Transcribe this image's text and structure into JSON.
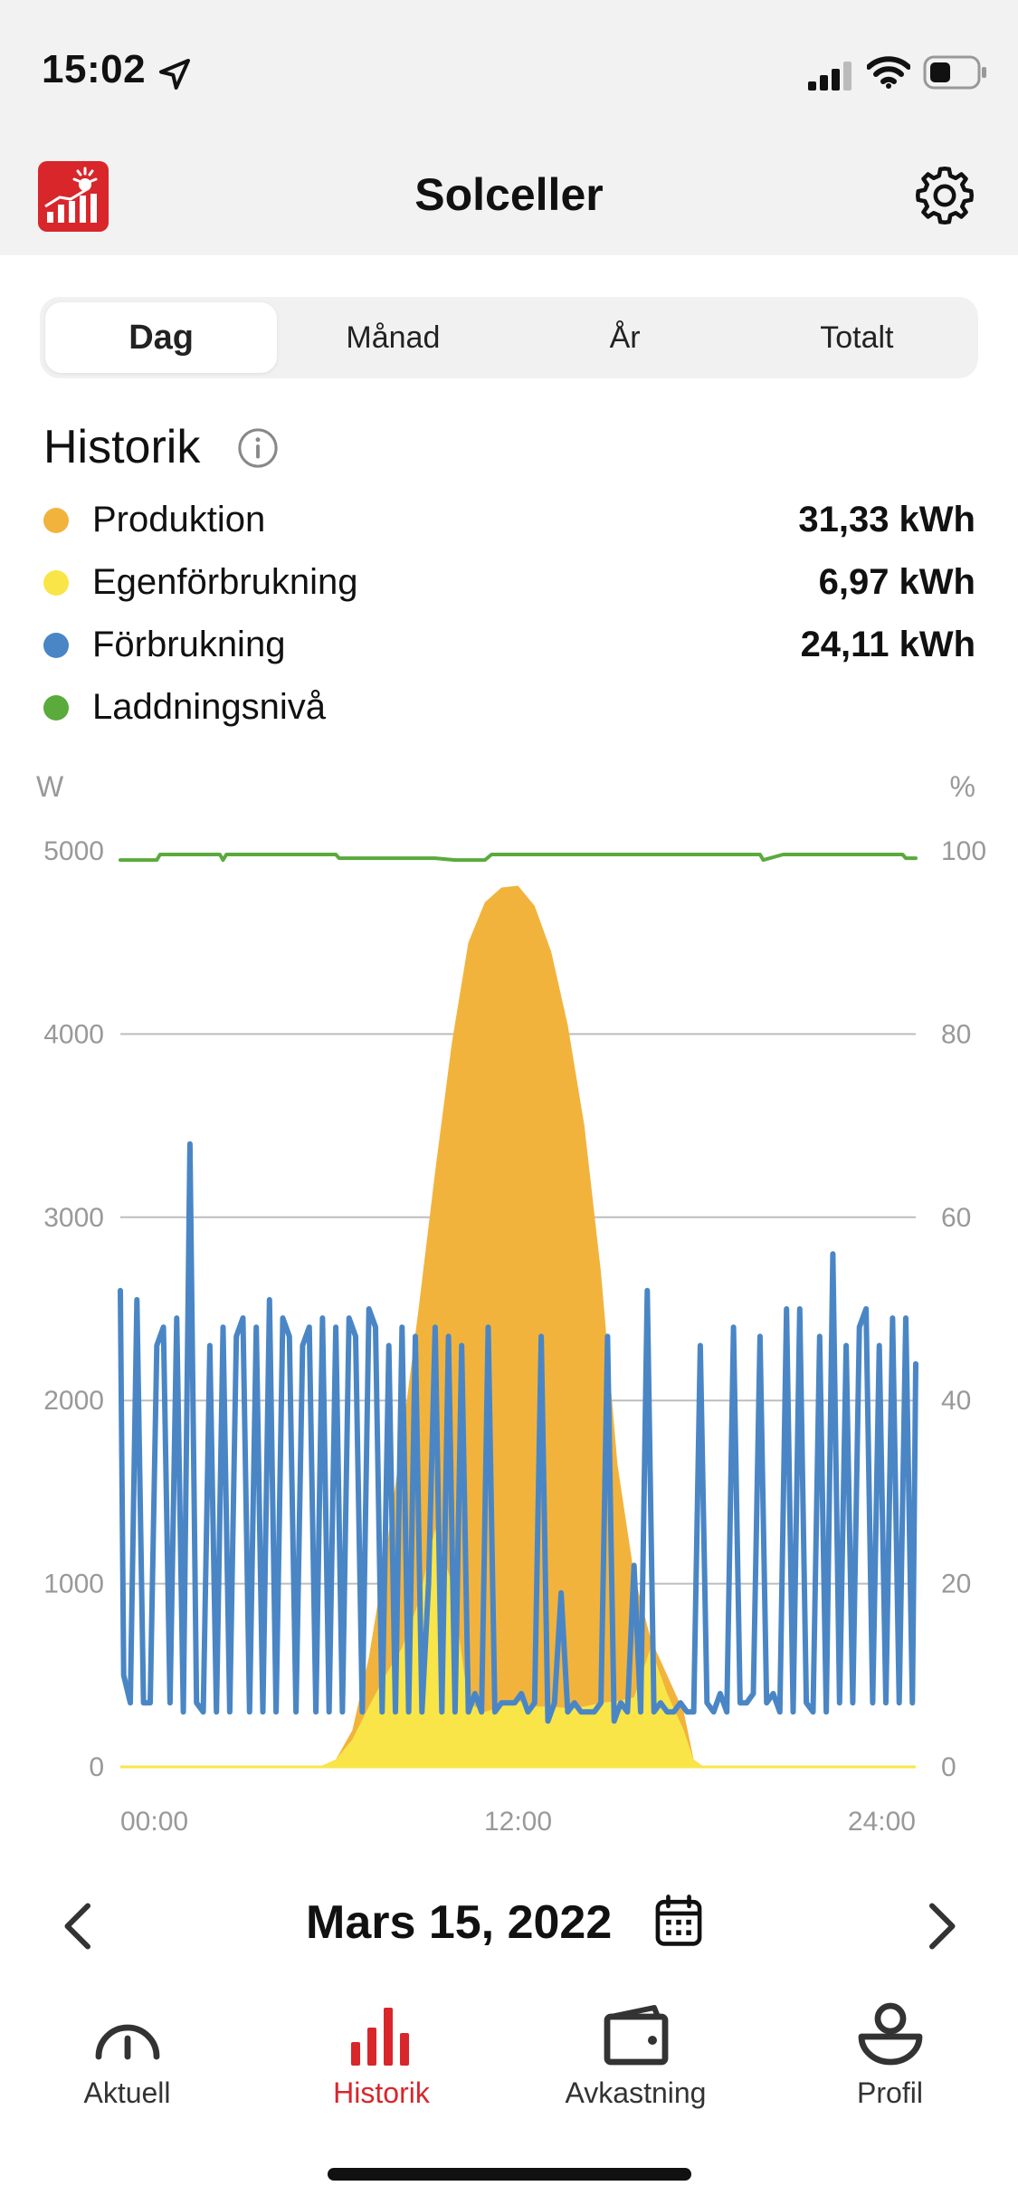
{
  "status_bar": {
    "time": "15:02"
  },
  "header": {
    "title": "Solceller"
  },
  "period_tabs": [
    {
      "label": "Dag",
      "active": true
    },
    {
      "label": "Månad",
      "active": false
    },
    {
      "label": "År",
      "active": false
    },
    {
      "label": "Totalt",
      "active": false
    }
  ],
  "section": {
    "title": "Historik"
  },
  "legend": [
    {
      "label": "Produktion",
      "value": "31,33 kWh",
      "color": "#F2B33D"
    },
    {
      "label": "Egenförbrukning",
      "value": "6,97 kWh",
      "color": "#F9E547"
    },
    {
      "label": "Förbrukning",
      "value": "24,11 kWh",
      "color": "#4A86C5"
    },
    {
      "label": "Laddningsnivå",
      "value": "",
      "color": "#5AAA3C"
    }
  ],
  "chart_data": {
    "type": "area",
    "left_axis": {
      "unit": "W",
      "ticks": [
        "5000",
        "4000",
        "3000",
        "2000",
        "1000",
        "0"
      ],
      "range": [
        0,
        5000
      ]
    },
    "right_axis": {
      "unit": "%",
      "ticks": [
        "100",
        "80",
        "60",
        "40",
        "20",
        "0"
      ],
      "range": [
        0,
        100
      ]
    },
    "x_ticks": [
      "00:00",
      "12:00",
      "24:00"
    ],
    "x_range_hours": [
      0,
      24
    ],
    "grid": true,
    "series": [
      {
        "name": "Produktion",
        "type": "area",
        "color": "#F2B33D",
        "points": [
          [
            0,
            0
          ],
          [
            6,
            0
          ],
          [
            6.5,
            40
          ],
          [
            7,
            200
          ],
          [
            7.5,
            600
          ],
          [
            8,
            1150
          ],
          [
            8.5,
            1800
          ],
          [
            9,
            2500
          ],
          [
            9.5,
            3250
          ],
          [
            10,
            3950
          ],
          [
            10.5,
            4500
          ],
          [
            11,
            4720
          ],
          [
            11.5,
            4800
          ],
          [
            12,
            4810
          ],
          [
            12.5,
            4700
          ],
          [
            13,
            4450
          ],
          [
            13.5,
            4050
          ],
          [
            14,
            3500
          ],
          [
            14.5,
            2700
          ],
          [
            15,
            1650
          ],
          [
            15.5,
            1050
          ],
          [
            16,
            700
          ],
          [
            16.5,
            500
          ],
          [
            17,
            300
          ],
          [
            17.3,
            40
          ],
          [
            17.6,
            0
          ],
          [
            24,
            0
          ]
        ]
      },
      {
        "name": "Egenförbrukning",
        "type": "area",
        "color": "#F9E547",
        "points": [
          [
            0,
            0
          ],
          [
            6,
            0
          ],
          [
            6.5,
            40
          ],
          [
            7,
            150
          ],
          [
            7.5,
            330
          ],
          [
            8,
            500
          ],
          [
            8.5,
            650
          ],
          [
            9,
            900
          ],
          [
            9.5,
            1300
          ],
          [
            10,
            1000
          ],
          [
            10.5,
            350
          ],
          [
            11,
            300
          ],
          [
            11.5,
            330
          ],
          [
            12,
            360
          ],
          [
            12.5,
            330
          ],
          [
            13,
            330
          ],
          [
            13.5,
            320
          ],
          [
            14,
            330
          ],
          [
            14.5,
            350
          ],
          [
            15,
            360
          ],
          [
            15.5,
            380
          ],
          [
            16,
            650
          ],
          [
            16.5,
            400
          ],
          [
            17,
            200
          ],
          [
            17.3,
            40
          ],
          [
            17.6,
            0
          ],
          [
            24,
            0
          ]
        ]
      },
      {
        "name": "Förbrukning",
        "type": "line",
        "color": "#4A86C5",
        "points": [
          [
            0,
            2600
          ],
          [
            0.1,
            500
          ],
          [
            0.3,
            350
          ],
          [
            0.5,
            2550
          ],
          [
            0.7,
            350
          ],
          [
            0.9,
            350
          ],
          [
            1.1,
            2300
          ],
          [
            1.3,
            2400
          ],
          [
            1.5,
            350
          ],
          [
            1.7,
            2450
          ],
          [
            1.9,
            300
          ],
          [
            2.1,
            3400
          ],
          [
            2.3,
            350
          ],
          [
            2.5,
            300
          ],
          [
            2.7,
            2300
          ],
          [
            2.9,
            300
          ],
          [
            3.1,
            2400
          ],
          [
            3.3,
            300
          ],
          [
            3.5,
            2350
          ],
          [
            3.7,
            2450
          ],
          [
            3.9,
            300
          ],
          [
            4.1,
            2400
          ],
          [
            4.3,
            300
          ],
          [
            4.5,
            2550
          ],
          [
            4.7,
            300
          ],
          [
            4.9,
            2450
          ],
          [
            5.1,
            2350
          ],
          [
            5.3,
            300
          ],
          [
            5.5,
            2300
          ],
          [
            5.7,
            2400
          ],
          [
            5.9,
            300
          ],
          [
            6.1,
            2450
          ],
          [
            6.3,
            300
          ],
          [
            6.5,
            2400
          ],
          [
            6.7,
            300
          ],
          [
            6.9,
            2450
          ],
          [
            7.1,
            2350
          ],
          [
            7.3,
            300
          ],
          [
            7.5,
            2500
          ],
          [
            7.7,
            2400
          ],
          [
            7.9,
            300
          ],
          [
            8.1,
            2300
          ],
          [
            8.3,
            300
          ],
          [
            8.5,
            2400
          ],
          [
            8.7,
            300
          ],
          [
            8.9,
            2350
          ],
          [
            9.1,
            300
          ],
          [
            9.3,
            1000
          ],
          [
            9.5,
            2400
          ],
          [
            9.7,
            300
          ],
          [
            9.9,
            2350
          ],
          [
            10.1,
            300
          ],
          [
            10.3,
            2300
          ],
          [
            10.5,
            300
          ],
          [
            10.7,
            400
          ],
          [
            10.9,
            300
          ],
          [
            11.1,
            2400
          ],
          [
            11.3,
            300
          ],
          [
            11.5,
            350
          ],
          [
            11.7,
            350
          ],
          [
            11.9,
            350
          ],
          [
            12.1,
            400
          ],
          [
            12.3,
            300
          ],
          [
            12.5,
            350
          ],
          [
            12.7,
            2350
          ],
          [
            12.9,
            250
          ],
          [
            13.1,
            350
          ],
          [
            13.3,
            950
          ],
          [
            13.5,
            300
          ],
          [
            13.7,
            350
          ],
          [
            13.9,
            300
          ],
          [
            14.1,
            300
          ],
          [
            14.3,
            300
          ],
          [
            14.5,
            350
          ],
          [
            14.7,
            2350
          ],
          [
            14.9,
            250
          ],
          [
            15.1,
            350
          ],
          [
            15.3,
            300
          ],
          [
            15.5,
            1100
          ],
          [
            15.7,
            300
          ],
          [
            15.9,
            2600
          ],
          [
            16.1,
            300
          ],
          [
            16.3,
            350
          ],
          [
            16.5,
            300
          ],
          [
            16.7,
            300
          ],
          [
            16.9,
            350
          ],
          [
            17.1,
            300
          ],
          [
            17.3,
            300
          ],
          [
            17.5,
            2300
          ],
          [
            17.7,
            350
          ],
          [
            17.9,
            300
          ],
          [
            18.1,
            400
          ],
          [
            18.3,
            300
          ],
          [
            18.5,
            2400
          ],
          [
            18.7,
            350
          ],
          [
            18.9,
            350
          ],
          [
            19.1,
            400
          ],
          [
            19.3,
            2350
          ],
          [
            19.5,
            350
          ],
          [
            19.7,
            400
          ],
          [
            19.9,
            300
          ],
          [
            20.1,
            2500
          ],
          [
            20.3,
            300
          ],
          [
            20.5,
            2500
          ],
          [
            20.7,
            350
          ],
          [
            20.9,
            300
          ],
          [
            21.1,
            2350
          ],
          [
            21.3,
            300
          ],
          [
            21.5,
            2800
          ],
          [
            21.7,
            350
          ],
          [
            21.9,
            2300
          ],
          [
            22.1,
            350
          ],
          [
            22.3,
            2400
          ],
          [
            22.5,
            2500
          ],
          [
            22.7,
            350
          ],
          [
            22.9,
            2300
          ],
          [
            23.1,
            350
          ],
          [
            23.3,
            2450
          ],
          [
            23.5,
            350
          ],
          [
            23.7,
            2450
          ],
          [
            23.9,
            350
          ],
          [
            24,
            2200
          ]
        ]
      },
      {
        "name": "Laddningsnivå",
        "type": "line",
        "axis": "right",
        "color": "#5AAA3C",
        "points": [
          [
            0,
            99
          ],
          [
            0.5,
            99
          ],
          [
            1.1,
            99
          ],
          [
            1.2,
            99.6
          ],
          [
            3.0,
            99.6
          ],
          [
            3.1,
            99
          ],
          [
            3.2,
            99.6
          ],
          [
            6.5,
            99.6
          ],
          [
            6.6,
            99.2
          ],
          [
            9.5,
            99.2
          ],
          [
            10.1,
            99
          ],
          [
            11,
            99
          ],
          [
            11.2,
            99.6
          ],
          [
            19.3,
            99.6
          ],
          [
            19.4,
            99
          ],
          [
            20.0,
            99.6
          ],
          [
            23.6,
            99.6
          ],
          [
            23.7,
            99.2
          ],
          [
            24,
            99.2
          ]
        ]
      }
    ]
  },
  "date_nav": {
    "label": "Mars 15, 2022"
  },
  "tab_bar": [
    {
      "label": "Aktuell",
      "icon": "gauge-icon",
      "active": false
    },
    {
      "label": "Historik",
      "icon": "bar-chart-icon",
      "active": true
    },
    {
      "label": "Avkastning",
      "icon": "wallet-icon",
      "active": false
    },
    {
      "label": "Profil",
      "icon": "profile-icon",
      "active": false
    }
  ]
}
